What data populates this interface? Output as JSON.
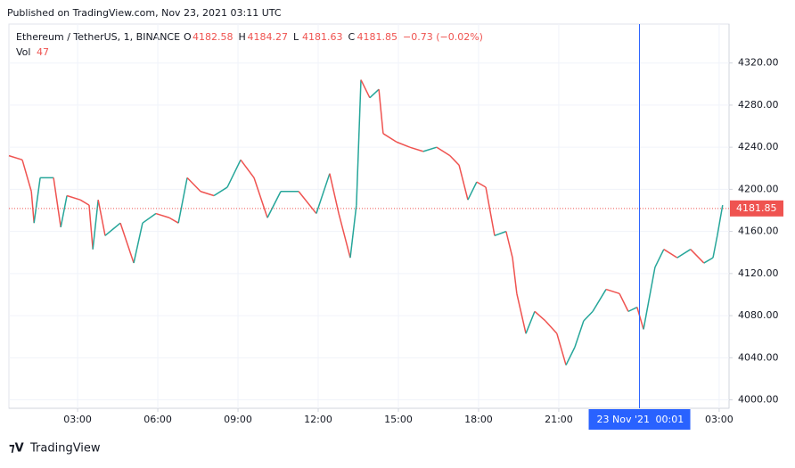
{
  "header": {
    "published": "Published on TradingView.com, Nov 23, 2021 03:11 UTC",
    "brand": "TradingView"
  },
  "chart_data": {
    "type": "line",
    "symbol": "Ethereum / TetherUS, 1, BINANCE",
    "ohlc": [
      {
        "label": "O",
        "value": 4182.58
      },
      {
        "label": "H",
        "value": 4184.27
      },
      {
        "label": "L",
        "value": 4181.63
      },
      {
        "label": "C",
        "value": 4181.85
      }
    ],
    "change": "−0.73 (−0.02%)",
    "volume_label": "Vol",
    "volume": 47,
    "last_price": 4181.85,
    "crosshair": {
      "x": 24.02,
      "date": "23 Nov '21",
      "time": "00:01"
    },
    "up_color": "#26a69a",
    "down_color": "#ef5350",
    "grid": true,
    "xlim": [
      0.43,
      27.37
    ],
    "ylim": [
      3992,
      4357
    ],
    "xticks": [
      {
        "value": 3,
        "label": "03:00"
      },
      {
        "value": 6,
        "label": "06:00"
      },
      {
        "value": 9,
        "label": "09:00"
      },
      {
        "value": 12,
        "label": "12:00"
      },
      {
        "value": 15,
        "label": "15:00"
      },
      {
        "value": 18,
        "label": "18:00"
      },
      {
        "value": 21,
        "label": "21:00"
      },
      {
        "value": 27,
        "label": "03:00"
      }
    ],
    "yticks": [
      {
        "value": 4000,
        "label": "4000.00"
      },
      {
        "value": 4040,
        "label": "4040.00"
      },
      {
        "value": 4080,
        "label": "4080.00"
      },
      {
        "value": 4120,
        "label": "4120.00"
      },
      {
        "value": 4160,
        "label": "4160.00"
      },
      {
        "value": 4200,
        "label": "4200.00"
      },
      {
        "value": 4240,
        "label": "4240.00"
      },
      {
        "value": 4280,
        "label": "4280.00"
      },
      {
        "value": 4320,
        "label": "4320.00"
      }
    ],
    "x": [
      0.43,
      0.93,
      1.27,
      1.37,
      1.6,
      2.1,
      2.37,
      2.6,
      3.1,
      3.43,
      3.57,
      3.77,
      4.03,
      4.6,
      5.1,
      5.43,
      5.93,
      6.43,
      6.77,
      7.1,
      7.6,
      8.1,
      8.6,
      9.1,
      9.6,
      10.1,
      10.6,
      11.27,
      11.93,
      12.43,
      12.77,
      13.2,
      13.43,
      13.6,
      13.93,
      14.27,
      14.43,
      14.93,
      15.43,
      15.93,
      16.43,
      16.93,
      17.27,
      17.6,
      17.93,
      18.27,
      18.6,
      19.03,
      19.27,
      19.43,
      19.77,
      20.1,
      20.5,
      20.93,
      21.27,
      21.6,
      21.93,
      22.27,
      22.77,
      23.27,
      23.6,
      23.93,
      24.17,
      24.6,
      24.93,
      25.43,
      25.93,
      26.43,
      26.77,
      26.93,
      27.13
    ],
    "values": [
      4232,
      4228,
      4198,
      4168,
      4211,
      4211,
      4164,
      4194,
      4190,
      4185,
      4143,
      4190,
      4156,
      4168,
      4130,
      4168,
      4177,
      4173,
      4168,
      4211,
      4198,
      4194,
      4202,
      4228,
      4211,
      4173,
      4198,
      4198,
      4177,
      4215,
      4177,
      4135,
      4185,
      4304,
      4287,
      4295,
      4253,
      4245,
      4240,
      4236,
      4240,
      4232,
      4223,
      4190,
      4207,
      4202,
      4156,
      4160,
      4135,
      4101,
      4063,
      4084,
      4075,
      4063,
      4033,
      4050,
      4075,
      4084,
      4105,
      4101,
      4084,
      4088,
      4067,
      4126,
      4143,
      4135,
      4143,
      4130,
      4135,
      4156,
      4185
    ]
  }
}
